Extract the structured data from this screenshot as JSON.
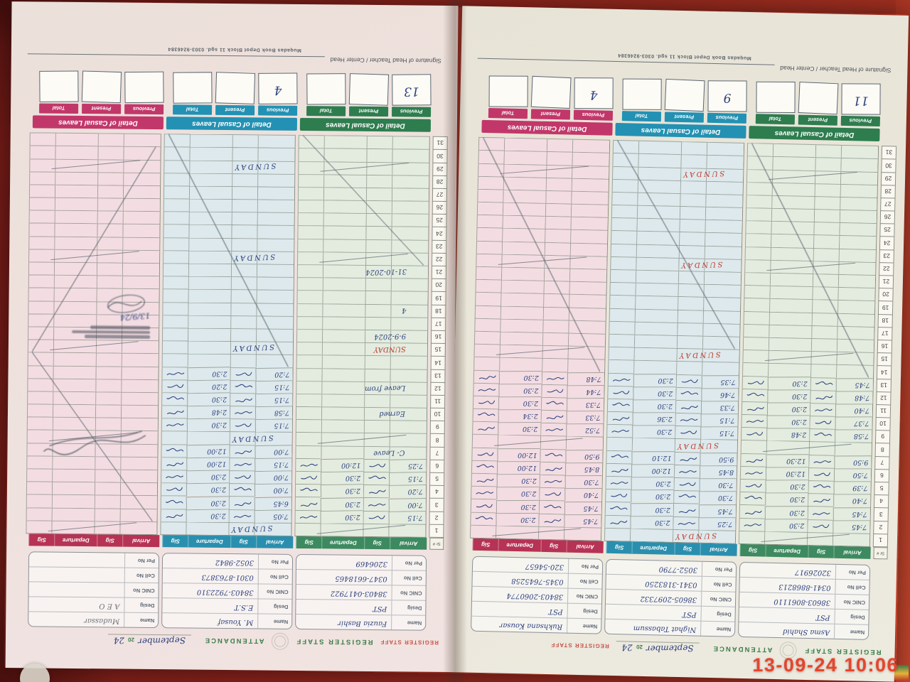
{
  "camera": {
    "timestamp": "13-09-24 10:06"
  },
  "print": {
    "attendance": "ATTENDANCE",
    "register_staff": "REGISTER STAFF",
    "signature_line": "Signature of Head Teacher / Center Head",
    "press_line": "Muqadas Book Depot Block 11 sgd. 0303-9246384",
    "leaves_banner": "Detail of Casual Leaves",
    "leaves_cols": [
      "Previous",
      "Present",
      "Total"
    ],
    "table_cols": [
      "Arrival",
      "Sig",
      "Departure",
      "Sig"
    ],
    "sr_header": "Sr #",
    "info_labels": [
      "Name",
      "Desig",
      "CNIC No",
      "Cell No",
      "Per No"
    ],
    "total_days": 31
  },
  "handwritten_month": {
    "month": "September",
    "year_printed": "20",
    "year_written": "24"
  },
  "sundays": [
    1,
    8,
    15,
    22,
    29
  ],
  "pages": [
    {
      "id": "left",
      "sections": [
        {
          "tone": "green",
          "staff": {
            "name": "Asma Shahid",
            "desig": "PST",
            "cnic": "38603-8061110",
            "cell": "0341-8868213",
            "per": "32026917"
          },
          "leaves": {
            "previous": "11",
            "present": "",
            "total": ""
          },
          "sunday_mark": "slash",
          "entries": [
            [
              2,
              "7:45",
              "2:30"
            ],
            [
              3,
              "7:45",
              "2:30"
            ],
            [
              4,
              "7:40",
              "2:30"
            ],
            [
              5,
              "7:39",
              "2:30"
            ],
            [
              6,
              "7:50",
              "12:30"
            ],
            [
              7,
              "9:50",
              "12:30"
            ],
            [
              9,
              "7:58",
              "2:48"
            ],
            [
              10,
              "7:37",
              "2:30"
            ],
            [
              11,
              "7:40",
              "2:30"
            ],
            [
              12,
              "7:48",
              "2:30"
            ],
            [
              13,
              "7:45",
              "2:30"
            ]
          ],
          "notes": [],
          "strikes": [
            [
              14,
              31
            ]
          ]
        },
        {
          "tone": "blue",
          "staff": {
            "name": "Nighat Tabassum",
            "desig": "PST",
            "cnic": "38605-2097332",
            "cell": "0341-3183250",
            "per": "3052-7790"
          },
          "leaves": {
            "previous": "9",
            "present": "",
            "total": ""
          },
          "sunday_mark": "red",
          "entries": [
            [
              2,
              "7:25",
              "2:30"
            ],
            [
              3,
              "7:45",
              "2:30"
            ],
            [
              4,
              "7:30",
              "2:30"
            ],
            [
              5,
              "7:30",
              "2:30"
            ],
            [
              6,
              "8:45",
              "12:00"
            ],
            [
              7,
              "9:50",
              "12:10"
            ],
            [
              9,
              "7:15",
              "2:30"
            ],
            [
              10,
              "7:15",
              "2:36"
            ],
            [
              11,
              "7:33",
              "2:30"
            ],
            [
              12,
              "7:46",
              "2:30"
            ],
            [
              13,
              "7:35",
              "2:30"
            ]
          ],
          "notes": [],
          "strikes": [
            [
              16,
              31
            ]
          ]
        },
        {
          "tone": "pink",
          "staff": {
            "name": "Rukhsana Kousar",
            "desig": "PST",
            "cnic": "38403-2060774",
            "cell": "0345-7645258",
            "per": "320-54657"
          },
          "leaves": {
            "previous": "4",
            "present": "",
            "total": ""
          },
          "sunday_mark": "slash",
          "entries": [
            [
              2,
              "7:45",
              "2:30"
            ],
            [
              3,
              "7:45",
              "2:30"
            ],
            [
              4,
              "7:40",
              "2:30"
            ],
            [
              5,
              "7:30",
              "2:30"
            ],
            [
              6,
              "8:45",
              "12:00"
            ],
            [
              7,
              "9:50",
              "12:00"
            ],
            [
              9,
              "7:52",
              "2:30"
            ],
            [
              10,
              "7:33",
              "2:34"
            ],
            [
              11,
              "7:33",
              "2:30"
            ],
            [
              12,
              "7:44",
              "2:30"
            ],
            [
              13,
              "7:48",
              "2:30"
            ]
          ],
          "notes": [],
          "strikes": [
            [
              14,
              31
            ]
          ]
        }
      ]
    },
    {
      "id": "right",
      "sections": [
        {
          "tone": "green",
          "staff": {
            "name": "Fauzia Bashir",
            "desig": "PST",
            "cnic": "38403-0417922",
            "cell": "0347-6618465",
            "per": "3206469"
          },
          "leaves": {
            "previous": "13",
            "present": "",
            "total": ""
          },
          "sunday_mark": "slash",
          "entries": [
            [
              2,
              "7:15",
              "2:30"
            ],
            [
              3,
              "7:00",
              "2:30"
            ],
            [
              4,
              "7:20",
              "2:30"
            ],
            [
              5,
              "7:15",
              "2:30"
            ],
            [
              6,
              "7:25",
              "12:00"
            ]
          ],
          "notes": [
            [
              7,
              "C- Leave",
              "ink"
            ],
            [
              10,
              "Earned",
              "ink"
            ],
            [
              12,
              "Leave from",
              "ink"
            ],
            [
              15,
              "SUNDAY",
              "red"
            ],
            [
              16,
              "9-9-2024",
              "ink"
            ],
            [
              18,
              "4",
              "ink"
            ],
            [
              21,
              "31-10-2024",
              "ink"
            ]
          ],
          "strikes": [
            [
              22,
              31
            ]
          ]
        },
        {
          "tone": "blue",
          "staff": {
            "name": "M. Yousaf",
            "desig": "E.S.T",
            "cnic": "38403-7922310",
            "cell": "0301-8763873",
            "per": "3052-9842"
          },
          "leaves": {
            "previous": "4",
            "present": "",
            "total": ""
          },
          "sunday_mark": "ink",
          "entries": [
            [
              2,
              "7:05",
              "2:30"
            ],
            [
              3,
              "6:45",
              "2:30"
            ],
            [
              4,
              "7:00",
              "2:30"
            ],
            [
              5,
              "7:00",
              "2:30"
            ],
            [
              6,
              "7:15",
              "12:00"
            ],
            [
              7,
              "7:00",
              "12:00"
            ],
            [
              9,
              "7:15",
              "2:30"
            ],
            [
              10,
              "7:58",
              "2:48"
            ],
            [
              11,
              "7:15",
              "2:30"
            ],
            [
              12,
              "7:15",
              "2:20"
            ],
            [
              13,
              "7:20",
              "2:30"
            ]
          ],
          "notes": [],
          "strikes": [
            [
              14,
              31
            ]
          ]
        },
        {
          "tone": "pink",
          "staff": {
            "name": "Mudassar",
            "desig": "A E O",
            "cnic": "",
            "cell": "",
            "per": ""
          },
          "leaves": {
            "previous": "",
            "present": "",
            "total": ""
          },
          "sunday_mark": "slash",
          "entries": [],
          "notes": [],
          "strikes": [
            [
              2,
              14
            ],
            [
              15,
              30
            ]
          ],
          "stamps": [
            {
              "row": 7,
              "kind": "flourish",
              "date": ""
            },
            {
              "row": 16,
              "kind": "stamp",
              "date": "13/9/24"
            }
          ]
        }
      ]
    }
  ]
}
